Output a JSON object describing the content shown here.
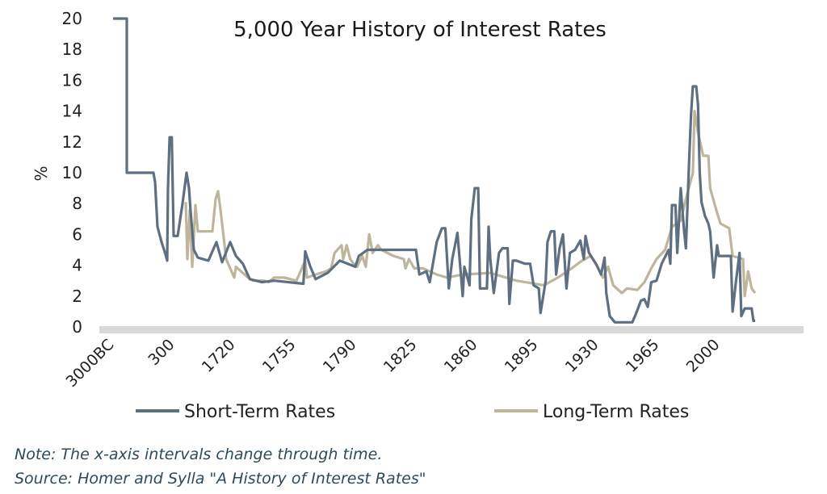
{
  "chart_data": {
    "type": "line",
    "title": "5,000 Year History of Interest Rates",
    "ylabel": "%",
    "xlabel": "",
    "ylim": [
      0,
      20
    ],
    "yticks": [
      0,
      2,
      4,
      6,
      8,
      10,
      12,
      14,
      16,
      18,
      20
    ],
    "xticks": [
      {
        "label": "3000BC",
        "value": -3000
      },
      {
        "label": "300",
        "value": 300
      },
      {
        "label": "1720",
        "value": 1720
      },
      {
        "label": "1755",
        "value": 1755
      },
      {
        "label": "1790",
        "value": 1790
      },
      {
        "label": "1825",
        "value": 1825
      },
      {
        "label": "1860",
        "value": 1860
      },
      {
        "label": "1895",
        "value": 1895
      },
      {
        "label": "1930",
        "value": 1930
      },
      {
        "label": "1965",
        "value": 1965
      },
      {
        "label": "2000",
        "value": 2000
      }
    ],
    "x_scale_note": "The x-axis intervals change through time.",
    "legend_position": "bottom",
    "grid": false,
    "series": [
      {
        "name": "Short-Term Rates",
        "color": "#5f6f82",
        "points": [
          [
            -3000,
            20
          ],
          [
            -2252,
            20
          ],
          [
            -2252,
            10
          ],
          [
            -800,
            10
          ],
          [
            -712,
            9.4
          ],
          [
            -580,
            6.5
          ],
          [
            -360,
            5.5
          ],
          [
            -140,
            4.7
          ],
          [
            -52,
            4.3
          ],
          [
            -8,
            9
          ],
          [
            80,
            12.3
          ],
          [
            200,
            12.3
          ],
          [
            300,
            5.9
          ],
          [
            395,
            5.9
          ],
          [
            508,
            8
          ],
          [
            603,
            10
          ],
          [
            660,
            9
          ],
          [
            697,
            7.5
          ],
          [
            773,
            5
          ],
          [
            868,
            4.5
          ],
          [
            1114,
            4.3
          ],
          [
            1303,
            5.5
          ],
          [
            1436,
            4.2
          ],
          [
            1625,
            5.5
          ],
          [
            1721,
            4.6
          ],
          [
            1725,
            4.1
          ],
          [
            1729,
            3.1
          ],
          [
            1736,
            2.9
          ],
          [
            1743,
            3.0
          ],
          [
            1760,
            2.8
          ],
          [
            1761,
            4.9
          ],
          [
            1764,
            3.9
          ],
          [
            1767,
            3.1
          ],
          [
            1774,
            3.5
          ],
          [
            1781,
            4.3
          ],
          [
            1790,
            3.9
          ],
          [
            1792,
            4.6
          ],
          [
            1797,
            5.0
          ],
          [
            1825,
            5.0
          ],
          [
            1827,
            3.4
          ],
          [
            1831,
            3.6
          ],
          [
            1833,
            2.9
          ],
          [
            1837,
            5.5
          ],
          [
            1840,
            6.4
          ],
          [
            1842,
            6.4
          ],
          [
            1844,
            2.5
          ],
          [
            1846,
            4.4
          ],
          [
            1849,
            6.1
          ],
          [
            1852,
            2.0
          ],
          [
            1853,
            3.9
          ],
          [
            1856,
            2.7
          ],
          [
            1857,
            7.0
          ],
          [
            1859,
            9.0
          ],
          [
            1861,
            9.0
          ],
          [
            1862,
            2.5
          ],
          [
            1866,
            2.5
          ],
          [
            1867,
            6.5
          ],
          [
            1868,
            4.4
          ],
          [
            1870,
            2.2
          ],
          [
            1873,
            4.8
          ],
          [
            1875,
            5.1
          ],
          [
            1878,
            5.1
          ],
          [
            1879,
            1.5
          ],
          [
            1881,
            4.3
          ],
          [
            1883,
            4.3
          ],
          [
            1888,
            4.1
          ],
          [
            1891,
            4.1
          ],
          [
            1893,
            2.7
          ],
          [
            1896,
            2.5
          ],
          [
            1897,
            0.9
          ],
          [
            1900,
            3.0
          ],
          [
            1901,
            5.5
          ],
          [
            1903,
            6.2
          ],
          [
            1905,
            6.2
          ],
          [
            1906,
            3.4
          ],
          [
            1908,
            5.1
          ],
          [
            1910,
            6.0
          ],
          [
            1912,
            2.5
          ],
          [
            1914,
            4.8
          ],
          [
            1917,
            5.0
          ],
          [
            1920,
            5.6
          ],
          [
            1922,
            4.4
          ],
          [
            1923,
            5.9
          ],
          [
            1925,
            4.8
          ],
          [
            1929,
            4.1
          ],
          [
            1932,
            3.4
          ],
          [
            1934,
            4.5
          ],
          [
            1935,
            2.2
          ],
          [
            1937,
            0.7
          ],
          [
            1940,
            0.3
          ],
          [
            1950,
            0.3
          ],
          [
            1952,
            0.8
          ],
          [
            1955,
            1.7
          ],
          [
            1957,
            1.8
          ],
          [
            1959,
            1.3
          ],
          [
            1961,
            2.9
          ],
          [
            1964,
            3.0
          ],
          [
            1967,
            4.1
          ],
          [
            1971,
            5.0
          ],
          [
            1972,
            4.1
          ],
          [
            1973,
            7.9
          ],
          [
            1975,
            7.9
          ],
          [
            1976,
            4.8
          ],
          [
            1978,
            9.0
          ],
          [
            1980,
            6.2
          ],
          [
            1981,
            5.1
          ],
          [
            1983,
            11.2
          ],
          [
            1984,
            13.8
          ],
          [
            1985,
            15.6
          ],
          [
            1987,
            15.6
          ],
          [
            1988,
            14.4
          ],
          [
            1989,
            10.0
          ],
          [
            1990,
            8.1
          ],
          [
            1992,
            7.2
          ],
          [
            1994,
            6.7
          ],
          [
            1995,
            6.2
          ],
          [
            1997,
            3.2
          ],
          [
            1999,
            5.3
          ],
          [
            2000,
            4.6
          ],
          [
            2007,
            4.6
          ],
          [
            2008,
            1.0
          ],
          [
            2010,
            3.0
          ],
          [
            2012,
            4.8
          ],
          [
            2013,
            0.7
          ],
          [
            2015,
            1.2
          ],
          [
            2019,
            1.2
          ],
          [
            2020,
            0.4
          ],
          [
            2021,
            0.4
          ]
        ]
      },
      {
        "name": "Long-Term Rates",
        "color": "#beb59c",
        "points": [
          [
            584,
            8.1
          ],
          [
            622,
            4.4
          ],
          [
            679,
            7.6
          ],
          [
            735,
            3.9
          ],
          [
            811,
            7.9
          ],
          [
            868,
            6.2
          ],
          [
            1209,
            6.2
          ],
          [
            1285,
            8.3
          ],
          [
            1341,
            8.8
          ],
          [
            1398,
            7.6
          ],
          [
            1474,
            5.8
          ],
          [
            1531,
            4.4
          ],
          [
            1720,
            3.2
          ],
          [
            1721,
            3.9
          ],
          [
            1726,
            3.4
          ],
          [
            1728,
            3.2
          ],
          [
            1731,
            3.0
          ],
          [
            1737,
            3.0
          ],
          [
            1740,
            2.9
          ],
          [
            1743,
            3.2
          ],
          [
            1749,
            3.2
          ],
          [
            1756,
            3.0
          ],
          [
            1761,
            4.3
          ],
          [
            1762,
            3.2
          ],
          [
            1767,
            3.4
          ],
          [
            1773,
            3.6
          ],
          [
            1776,
            3.8
          ],
          [
            1778,
            4.8
          ],
          [
            1782,
            5.3
          ],
          [
            1783,
            4.4
          ],
          [
            1785,
            5.3
          ],
          [
            1787,
            4.4
          ],
          [
            1789,
            4.1
          ],
          [
            1791,
            3.9
          ],
          [
            1794,
            4.6
          ],
          [
            1796,
            3.9
          ],
          [
            1798,
            6.0
          ],
          [
            1800,
            4.8
          ],
          [
            1803,
            5.3
          ],
          [
            1805,
            5.0
          ],
          [
            1812,
            4.6
          ],
          [
            1818,
            4.4
          ],
          [
            1819,
            3.8
          ],
          [
            1821,
            4.4
          ],
          [
            1824,
            3.8
          ],
          [
            1829,
            3.8
          ],
          [
            1837,
            3.4
          ],
          [
            1843,
            3.2
          ],
          [
            1852,
            3.4
          ],
          [
            1868,
            3.5
          ],
          [
            1883,
            3.0
          ],
          [
            1899,
            2.7
          ],
          [
            1907,
            3.2
          ],
          [
            1915,
            3.8
          ],
          [
            1921,
            4.3
          ],
          [
            1926,
            4.6
          ],
          [
            1930,
            3.9
          ],
          [
            1933,
            3.2
          ],
          [
            1936,
            3.9
          ],
          [
            1939,
            2.7
          ],
          [
            1944,
            2.2
          ],
          [
            1947,
            2.5
          ],
          [
            1953,
            2.4
          ],
          [
            1957,
            2.9
          ],
          [
            1961,
            3.8
          ],
          [
            1964,
            4.4
          ],
          [
            1969,
            5.0
          ],
          [
            1973,
            6.5
          ],
          [
            1978,
            6.9
          ],
          [
            1981,
            8.3
          ],
          [
            1985,
            10.0
          ],
          [
            1986,
            14.0
          ],
          [
            1988,
            12.6
          ],
          [
            1991,
            11.1
          ],
          [
            1994,
            11.1
          ],
          [
            1995,
            9.0
          ],
          [
            1999,
            7.4
          ],
          [
            2001,
            6.7
          ],
          [
            2006,
            6.4
          ],
          [
            2008,
            4.6
          ],
          [
            2014,
            4.4
          ],
          [
            2015,
            2.0
          ],
          [
            2017,
            3.6
          ],
          [
            2019,
            2.5
          ],
          [
            2021,
            2.2
          ]
        ]
      }
    ]
  },
  "notes": {
    "line1": "Note: The x-axis intervals change through time.",
    "line2": "Source: Homer and Sylla \"A History of Interest Rates\""
  }
}
